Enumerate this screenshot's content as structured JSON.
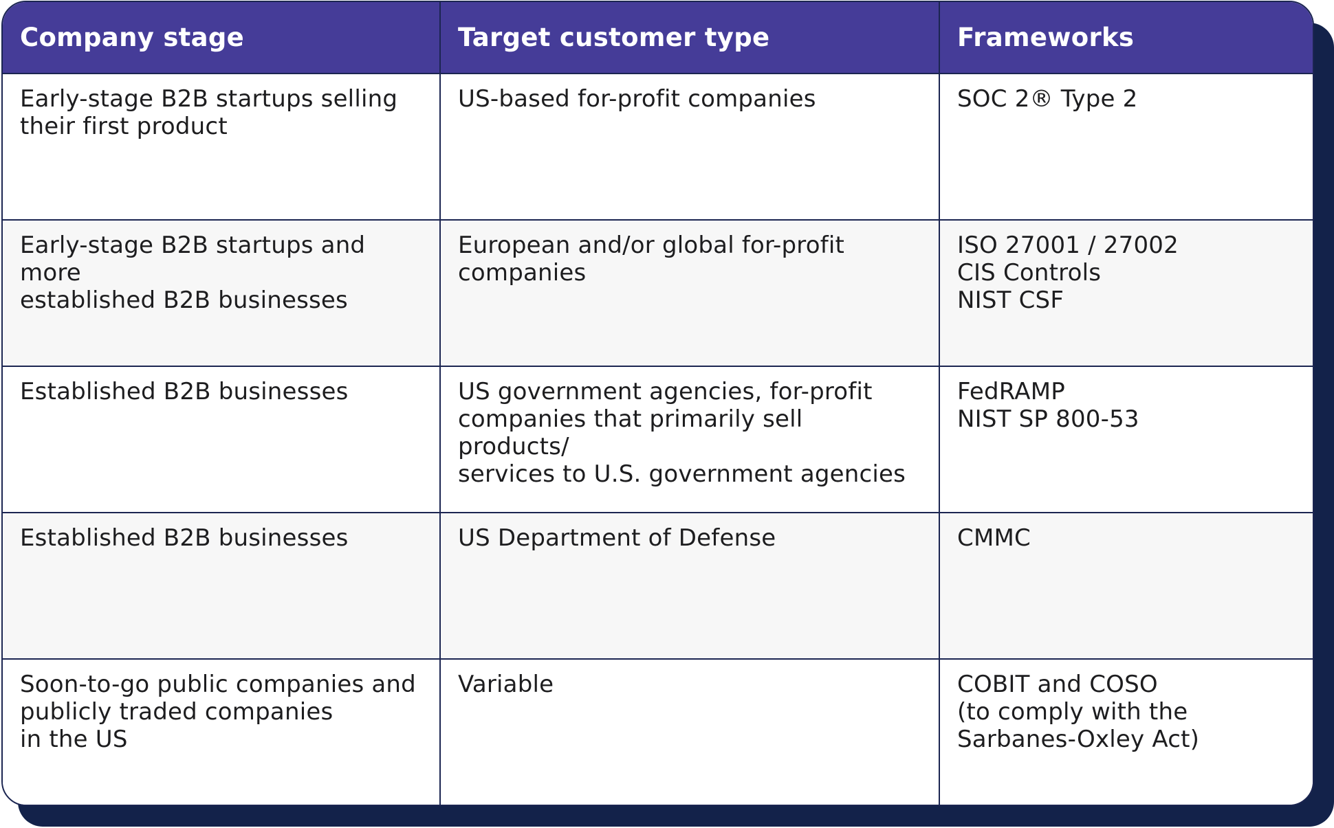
{
  "table": {
    "headers": [
      "Company stage",
      "Target customer type",
      "Frameworks"
    ],
    "rows": [
      {
        "company_stage": "Early-stage B2B startups selling\ntheir first product",
        "target_customer_type": "US-based for-profit companies",
        "frameworks": "SOC 2® Type 2"
      },
      {
        "company_stage": "Early-stage B2B startups and more\nestablished B2B businesses",
        "target_customer_type": "European and/or global for-profit\ncompanies",
        "frameworks": "ISO 27001 / 27002\nCIS Controls\nNIST CSF"
      },
      {
        "company_stage": "Established B2B businesses",
        "target_customer_type": "US government agencies, for-profit\ncompanies that primarily sell products/\nservices to U.S. government agencies",
        "frameworks": "FedRAMP\nNIST SP 800-53"
      },
      {
        "company_stage": "Established B2B businesses",
        "target_customer_type": "US Department of Defense",
        "frameworks": "CMMC"
      },
      {
        "company_stage": "Soon-to-go public companies and\npublicly traded companies\nin the US",
        "target_customer_type": "Variable",
        "frameworks": "COBIT and COSO\n(to comply with the\nSarbanes-Oxley Act)"
      }
    ]
  },
  "colors": {
    "header_bg": "#453c98",
    "border": "#1b2551",
    "shadow": "#13224a",
    "alt_row_bg": "#f7f7f7"
  }
}
